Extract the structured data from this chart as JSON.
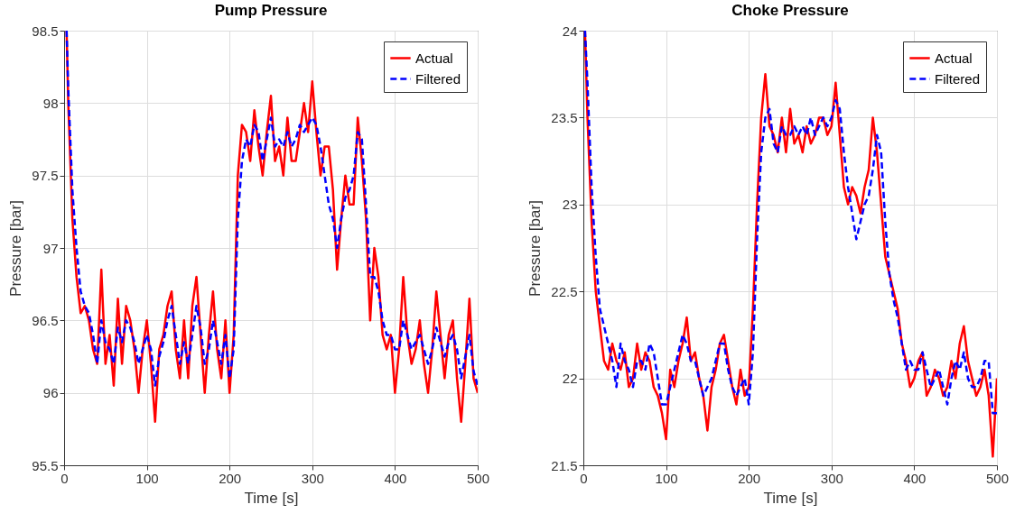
{
  "chart_data": [
    {
      "type": "line",
      "title": "Pump Pressure",
      "xlabel": "Time [s]",
      "ylabel": "Pressure [bar]",
      "xlim": [
        0,
        500
      ],
      "xticks": [
        0,
        100,
        200,
        300,
        400,
        500
      ],
      "ylim": [
        95.5,
        98.5
      ],
      "yticks": [
        95.5,
        96,
        96.5,
        97,
        97.5,
        98,
        98.5
      ],
      "grid": true,
      "legend": "top right",
      "series": [
        {
          "name": "Actual",
          "color": "#ff0000",
          "line_style": "solid",
          "x": [
            3,
            5,
            10,
            15,
            20,
            25,
            30,
            35,
            40,
            45,
            50,
            55,
            60,
            65,
            70,
            75,
            80,
            85,
            90,
            95,
            100,
            105,
            110,
            115,
            120,
            125,
            130,
            135,
            140,
            145,
            150,
            155,
            160,
            165,
            170,
            175,
            180,
            185,
            190,
            195,
            200,
            205,
            210,
            215,
            220,
            225,
            230,
            235,
            240,
            245,
            250,
            255,
            260,
            265,
            270,
            275,
            280,
            285,
            290,
            295,
            300,
            305,
            310,
            315,
            320,
            325,
            330,
            335,
            340,
            345,
            350,
            355,
            360,
            365,
            370,
            375,
            380,
            385,
            390,
            395,
            400,
            405,
            410,
            415,
            420,
            425,
            430,
            435,
            440,
            445,
            450,
            455,
            460,
            465,
            470,
            475,
            480,
            485,
            490,
            495,
            500
          ],
          "values": [
            98.5,
            98.0,
            97.2,
            96.8,
            96.55,
            96.6,
            96.5,
            96.3,
            96.2,
            96.85,
            96.2,
            96.4,
            96.05,
            96.65,
            96.2,
            96.6,
            96.5,
            96.3,
            96.0,
            96.3,
            96.5,
            96.2,
            95.8,
            96.3,
            96.4,
            96.6,
            96.7,
            96.3,
            96.1,
            96.5,
            96.1,
            96.6,
            96.8,
            96.4,
            96.0,
            96.4,
            96.7,
            96.3,
            96.1,
            96.5,
            96.0,
            96.4,
            97.5,
            97.85,
            97.8,
            97.6,
            97.95,
            97.7,
            97.5,
            97.8,
            98.05,
            97.6,
            97.7,
            97.5,
            97.9,
            97.6,
            97.6,
            97.8,
            98.0,
            97.8,
            98.15,
            97.8,
            97.5,
            97.7,
            97.7,
            97.4,
            96.85,
            97.2,
            97.5,
            97.3,
            97.3,
            97.9,
            97.6,
            97.2,
            96.5,
            97.0,
            96.8,
            96.4,
            96.3,
            96.4,
            96.0,
            96.3,
            96.8,
            96.4,
            96.2,
            96.3,
            96.5,
            96.2,
            96.0,
            96.3,
            96.7,
            96.4,
            96.1,
            96.4,
            96.5,
            96.1,
            95.8,
            96.2,
            96.65,
            96.1,
            96.0
          ]
        },
        {
          "name": "Filtered",
          "color": "#0000ff",
          "line_style": "dashed",
          "x": [
            3,
            5,
            10,
            15,
            20,
            25,
            30,
            35,
            40,
            45,
            50,
            55,
            60,
            65,
            70,
            75,
            80,
            85,
            90,
            95,
            100,
            105,
            110,
            115,
            120,
            125,
            130,
            135,
            140,
            145,
            150,
            155,
            160,
            165,
            170,
            175,
            180,
            185,
            190,
            195,
            200,
            205,
            210,
            215,
            220,
            225,
            230,
            235,
            240,
            245,
            250,
            255,
            260,
            265,
            270,
            275,
            280,
            285,
            290,
            295,
            300,
            305,
            310,
            315,
            320,
            325,
            330,
            335,
            340,
            345,
            350,
            355,
            360,
            365,
            370,
            375,
            380,
            385,
            390,
            395,
            400,
            405,
            410,
            415,
            420,
            425,
            430,
            435,
            440,
            445,
            450,
            455,
            460,
            465,
            470,
            475,
            480,
            485,
            490,
            495,
            500
          ],
          "values": [
            98.5,
            98.1,
            97.4,
            97.0,
            96.7,
            96.6,
            96.55,
            96.4,
            96.2,
            96.5,
            96.35,
            96.3,
            96.2,
            96.45,
            96.35,
            96.5,
            96.45,
            96.35,
            96.2,
            96.3,
            96.4,
            96.3,
            96.05,
            96.25,
            96.35,
            96.5,
            96.6,
            96.4,
            96.2,
            96.35,
            96.2,
            96.4,
            96.6,
            96.45,
            96.2,
            96.3,
            96.5,
            96.35,
            96.2,
            96.4,
            96.1,
            96.3,
            97.2,
            97.6,
            97.75,
            97.7,
            97.85,
            97.8,
            97.6,
            97.75,
            97.9,
            97.7,
            97.75,
            97.7,
            97.8,
            97.7,
            97.75,
            97.85,
            97.8,
            97.85,
            97.9,
            97.85,
            97.7,
            97.5,
            97.3,
            97.2,
            97.0,
            97.2,
            97.35,
            97.4,
            97.5,
            97.8,
            97.75,
            97.3,
            96.8,
            96.8,
            96.7,
            96.5,
            96.4,
            96.4,
            96.3,
            96.3,
            96.5,
            96.4,
            96.3,
            96.35,
            96.4,
            96.3,
            96.2,
            96.3,
            96.45,
            96.35,
            96.25,
            96.35,
            96.4,
            96.3,
            96.1,
            96.25,
            96.4,
            96.15,
            96.05
          ]
        }
      ]
    },
    {
      "type": "line",
      "title": "Choke Pressure",
      "xlabel": "Time [s]",
      "ylabel": "Pressure [bar]",
      "xlim": [
        0,
        500
      ],
      "xticks": [
        0,
        100,
        200,
        300,
        400,
        500
      ],
      "ylim": [
        21.5,
        24
      ],
      "yticks": [
        21.5,
        22,
        22.5,
        23,
        23.5,
        24
      ],
      "grid": true,
      "legend": "top right",
      "series": [
        {
          "name": "Actual",
          "color": "#ff0000",
          "line_style": "solid",
          "x": [
            2,
            5,
            10,
            15,
            20,
            25,
            30,
            35,
            40,
            45,
            50,
            55,
            60,
            65,
            70,
            75,
            80,
            85,
            90,
            95,
            100,
            105,
            110,
            115,
            120,
            125,
            130,
            135,
            140,
            145,
            150,
            155,
            160,
            165,
            170,
            175,
            180,
            185,
            190,
            195,
            200,
            205,
            210,
            215,
            220,
            225,
            230,
            235,
            240,
            245,
            250,
            255,
            260,
            265,
            270,
            275,
            280,
            285,
            290,
            295,
            300,
            305,
            310,
            315,
            320,
            325,
            330,
            335,
            340,
            345,
            350,
            355,
            360,
            365,
            370,
            375,
            380,
            385,
            390,
            395,
            400,
            405,
            410,
            415,
            420,
            425,
            430,
            435,
            440,
            445,
            450,
            455,
            460,
            465,
            470,
            475,
            480,
            485,
            490,
            495,
            500
          ],
          "values": [
            24.0,
            23.5,
            22.9,
            22.5,
            22.3,
            22.1,
            22.05,
            22.2,
            22.1,
            22.05,
            22.15,
            21.95,
            22.0,
            22.2,
            22.05,
            22.15,
            22.1,
            21.95,
            21.9,
            21.8,
            21.65,
            22.05,
            21.95,
            22.1,
            22.2,
            22.35,
            22.1,
            22.15,
            22.0,
            21.9,
            21.7,
            21.95,
            22.05,
            22.2,
            22.25,
            22.1,
            21.95,
            21.85,
            22.05,
            21.9,
            21.95,
            22.4,
            23.0,
            23.5,
            23.75,
            23.45,
            23.4,
            23.3,
            23.5,
            23.3,
            23.55,
            23.35,
            23.4,
            23.3,
            23.45,
            23.35,
            23.4,
            23.5,
            23.5,
            23.4,
            23.45,
            23.7,
            23.4,
            23.1,
            23.0,
            23.1,
            23.05,
            22.95,
            23.1,
            23.2,
            23.5,
            23.3,
            23.0,
            22.7,
            22.6,
            22.5,
            22.4,
            22.2,
            22.1,
            21.95,
            22.0,
            22.1,
            22.15,
            21.9,
            21.95,
            22.05,
            22.0,
            21.9,
            21.95,
            22.1,
            22.0,
            22.2,
            22.3,
            22.1,
            22.0,
            21.9,
            21.95,
            22.05,
            21.9,
            21.55,
            22.0
          ]
        },
        {
          "name": "Filtered",
          "color": "#0000ff",
          "line_style": "dashed",
          "x": [
            2,
            5,
            10,
            15,
            20,
            25,
            30,
            35,
            40,
            45,
            50,
            55,
            60,
            65,
            70,
            75,
            80,
            85,
            90,
            95,
            100,
            105,
            110,
            115,
            120,
            125,
            130,
            135,
            140,
            145,
            150,
            155,
            160,
            165,
            170,
            175,
            180,
            185,
            190,
            195,
            200,
            205,
            210,
            215,
            220,
            225,
            230,
            235,
            240,
            245,
            250,
            255,
            260,
            265,
            270,
            275,
            280,
            285,
            290,
            295,
            300,
            305,
            310,
            315,
            320,
            325,
            330,
            335,
            340,
            345,
            350,
            355,
            360,
            365,
            370,
            375,
            380,
            385,
            390,
            395,
            400,
            405,
            410,
            415,
            420,
            425,
            430,
            435,
            440,
            445,
            450,
            455,
            460,
            465,
            470,
            475,
            480,
            485,
            490,
            495,
            500
          ],
          "values": [
            24.0,
            23.7,
            23.1,
            22.7,
            22.4,
            22.3,
            22.2,
            22.1,
            21.95,
            22.2,
            22.1,
            22.05,
            21.95,
            22.1,
            22.1,
            22.05,
            22.2,
            22.15,
            22.0,
            21.85,
            21.85,
            21.95,
            22.05,
            22.15,
            22.25,
            22.2,
            22.1,
            22.1,
            22.0,
            21.9,
            21.95,
            22.0,
            22.1,
            22.2,
            22.2,
            22.05,
            21.95,
            21.9,
            21.95,
            22.0,
            21.85,
            22.15,
            22.8,
            23.3,
            23.5,
            23.55,
            23.35,
            23.3,
            23.45,
            23.4,
            23.4,
            23.45,
            23.4,
            23.45,
            23.4,
            23.5,
            23.4,
            23.45,
            23.5,
            23.45,
            23.5,
            23.6,
            23.55,
            23.3,
            23.1,
            22.95,
            22.8,
            22.9,
            23.0,
            23.05,
            23.2,
            23.4,
            23.3,
            22.9,
            22.6,
            22.45,
            22.35,
            22.2,
            22.05,
            22.1,
            22.05,
            22.05,
            22.15,
            22.05,
            21.95,
            22.0,
            22.05,
            21.95,
            21.85,
            22.0,
            22.1,
            22.05,
            22.15,
            22.0,
            21.95,
            21.95,
            22.0,
            22.1,
            22.1,
            21.8,
            21.8
          ]
        }
      ]
    }
  ]
}
